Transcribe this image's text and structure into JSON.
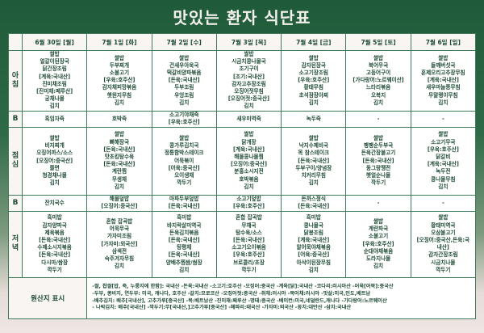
{
  "title": "맛있는 환자 식단표",
  "days": [
    "6월 30일 [월]",
    "7월 1일 [화]",
    "7월 2일 [수]",
    "7월 3일 [목]",
    "7월 4일 [금]",
    "7월 5일 [토]",
    "7월 6일 [일]"
  ],
  "rows": [
    {
      "label": "아\n침",
      "cells": [
        [
          "쌀밥",
          "얼갈이된장국",
          "닭간장조림",
          "[계육:국내산]",
          "진미채조림",
          "[진미채:페루산]",
          "궁채나물",
          "김치"
        ],
        [
          "쌀밥",
          "두부찌개",
          "소불고기",
          "[우육:호주산]",
          "감자채피망볶음",
          "햇원지무침",
          "김치"
        ],
        [
          "쌀밥",
          "건새우아욱국",
          "떡갈비양파볶음",
          "[돈육:국내산]",
          "두부조림",
          "우엉조림",
          "김치"
        ],
        [
          "쌀밥",
          "시금치콩나물국",
          "조기구이",
          "[조기:국내산]",
          "감자고추장조림",
          "오징어젓무침",
          "[오징어젓:중국산]",
          "김치"
        ],
        [
          "쌀밥",
          "감자된장국",
          "소고기장조림",
          "[우육:호주산]",
          "황태무침",
          "초석잠장아찌",
          "김치"
        ],
        [
          "쌀밥",
          "북어무국",
          "고등어구이",
          "[가다랑어:노르웨이산]",
          "느타리볶음",
          "오복지",
          "김치"
        ],
        [
          "쌀밥",
          "들깨버섯국",
          "훈제오리고추장무침",
          "[계육:국내산]",
          "새우마늘쫑무침",
          "무말랭이무침",
          "김치"
        ]
      ]
    },
    {
      "label": "B",
      "cells": [
        [
          "흑임자죽"
        ],
        [
          "호박죽"
        ],
        [
          "소고기야채죽",
          "[우육:호주산]"
        ],
        [
          "새우미역죽"
        ],
        [
          "녹두죽"
        ],
        [
          "-"
        ],
        [
          "-"
        ]
      ]
    },
    {
      "label": "점\n심",
      "cells": [
        [
          "쌀밥",
          "비지찌개",
          "오징어까스/소스",
          "[오징어:중국산]",
          "쫄면",
          "청경채나물",
          "김치"
        ],
        [
          "쌀밥",
          "뼈해장국",
          "[돈육:국내산]",
          "맛초킹탕수육",
          "[돈육:국내산]",
          "계란찜",
          "무생채",
          "김치"
        ],
        [
          "쌀밥",
          "콩가루김치국",
          "정통함박스테이크",
          "어묵볶이",
          "[어육:중국산]",
          "오이생채",
          "깍두기"
        ],
        [
          "쌀밥",
          "닭개장",
          "[계육:국내산]",
          "해물콩나물찜",
          "[오징어:중국산]",
          "분홍소시지전",
          "호박볶음",
          "김치"
        ],
        [
          "쌀밥",
          "낙지수제비국",
          "목 참스테이크",
          "[돈육:국내산]",
          "두부구이/양념장",
          "치커리무침",
          "김치"
        ],
        [
          "쌀밥",
          "팽팽순두부국",
          "돈육간장불고기",
          "[돈육:국내산]",
          "동그랑땡전",
          "햇얼순나물",
          "깍두기"
        ],
        [
          "쌀밥",
          "소고기무국",
          "[우육:호주산]",
          "닭갈비",
          "[계육:국내산]",
          "녹두전",
          "콩나물무침",
          "김치"
        ]
      ]
    },
    {
      "label": "B",
      "cells": [
        [
          "잔치국수"
        ],
        [
          "해물덮밥",
          "[오징어:중국산]"
        ],
        [
          "마파두부덮밥",
          "[돈육:국내산]"
        ],
        [
          "소고기덮밥",
          "[우육:호주산]"
        ],
        [
          "돈까스정식",
          "[돈육:국내산]"
        ],
        [
          "-"
        ],
        [
          "-"
        ]
      ]
    },
    {
      "label": "저\n녁",
      "cells": [
        [
          "흑미밥",
          "감자양파국",
          "제육볶음",
          "[돈육:국내산]",
          "수제소시지볶음",
          "[돈육:국내산]",
          "다시마/쌈장",
          "깍두기"
        ],
        [
          "혼합 잡곡밥",
          "어묵무국",
          "가자미조림",
          "[가자미:외국산]",
          "삼색전",
          "숙주겨자무침",
          "김치"
        ],
        [
          "흑미밥",
          "바지락살미역국",
          "돈육김치볶음",
          "[돈육:국내산]",
          "탕평채",
          "[돈육:국내산]",
          "양배추찜쌈/쌈장",
          "김치"
        ],
        [
          "혼합 잡곡밥",
          "무채국",
          "탕수육/소스",
          "[돈육:국내산]",
          "소고기오이볶음",
          "[우육:호주산]",
          "브로콜리/초장",
          "깍두기"
        ],
        [
          "흑미밥",
          "콩나물국",
          "닭봉조림",
          "[계육:국내산]",
          "알어묵야채볶음",
          "[어육:중국산]",
          "아삭이된장무침",
          "김치"
        ],
        [
          "쌀밥",
          "계란파국",
          "소불고기",
          "[우육:호주산]",
          "순대야채볶음",
          "도라지나물",
          "김치"
        ],
        [
          "쌀밥",
          "황태미역국",
          "오삼불고기",
          "[오징어:중국산,돈육:국",
          "내산]",
          "감자간장조림",
          "시금치나물",
          "깍두기"
        ]
      ]
    }
  ],
  "origin": {
    "label": "원산지 표시",
    "lines": [
      "-쌀, 찹쌀[밥, 죽, 누룽지에 한함]: 국내산  -돈육:국내산  -소고기:호주산  -오징어:중국산  -계육[닭]:국내산  -코다리:러시아산  -어육[어묵]:중국산",
      "-두부, 콩비지, 연두부: 미국, 캐나다, 호주산  -갈치:모로코산  -오징어젓:중국산  -쥐채:러시아  -북어채:러시아  -맛살:미국,인도,베트남",
      "-배추김치: 배추[국내산], 고추가루[중국산]  -묵:베트남산  -진미채:페루산  -명태:중국산  -베이컨:미국,네덜란드,캐나다  -가다랑어:노르웨이산",
      "- 나박김치: 배추[국내산]  -깍두기:무[국내산,]고추가루[중국산]  -해파리:태국산  -가자미:외국산  -꽁치:대만산  -삼치:국내산"
    ]
  },
  "colors": {
    "border": "#3f7a5a",
    "text": "#1d4a33",
    "bg_top": "#1f5a3a"
  }
}
